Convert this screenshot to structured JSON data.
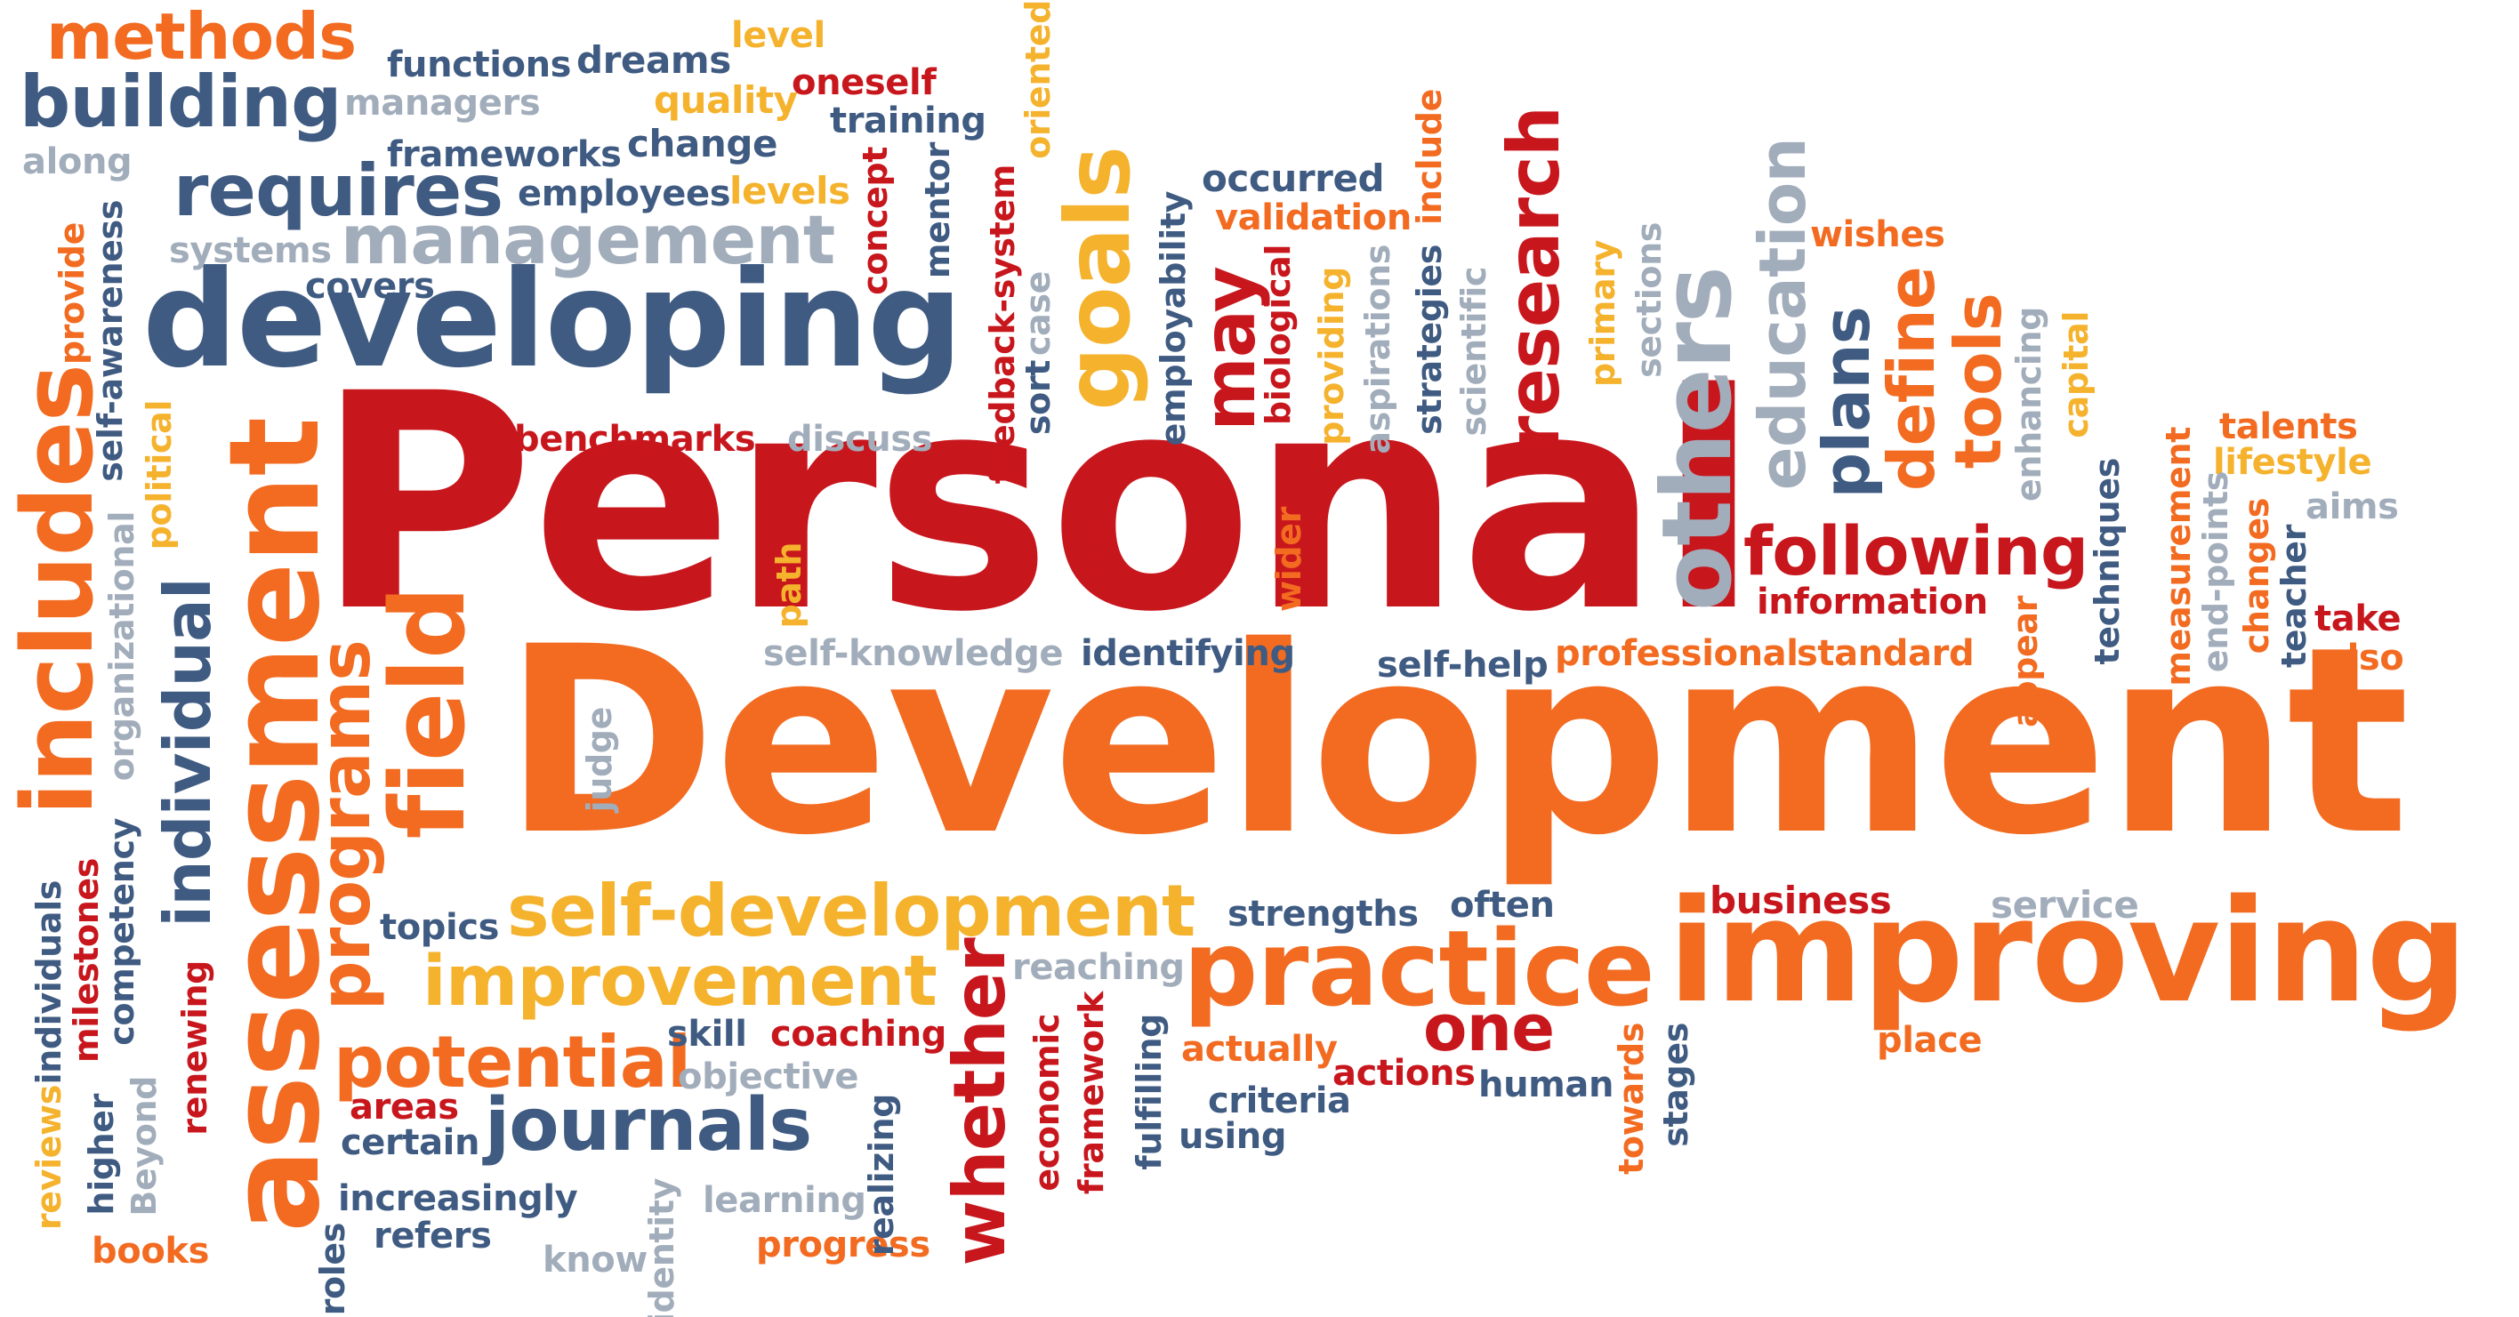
{
  "palette": {
    "orange": "#f26b21",
    "red": "#c8161d",
    "navy": "#3f5b82",
    "gray": "#a2adbb",
    "yellow": "#f5b22d",
    "background": "#ffffff"
  },
  "words": {
    "personal": "Personal",
    "development": "Development",
    "developing": "developing",
    "improving": "improving",
    "practice": "practice",
    "self_development": "self-development",
    "improvement": "improvement",
    "potential": "potential",
    "journals": "journals",
    "one": "one",
    "following": "following",
    "information": "information",
    "professional": "professional",
    "standard": "standard",
    "business": "business",
    "service": "service",
    "place": "place",
    "methods": "methods",
    "building": "building",
    "functions": "functions",
    "dreams": "dreams",
    "level": "level",
    "managers": "managers",
    "quality": "quality",
    "oneself": "oneself",
    "training": "training",
    "along": "along",
    "frameworks": "frameworks",
    "change": "change",
    "requires": "requires",
    "employees": "employees",
    "levels": "levels",
    "management": "management",
    "systems": "systems",
    "covers": "covers",
    "occurred": "occurred",
    "validation": "validation",
    "wishes": "wishes",
    "benchmarks": "benchmarks",
    "discuss": "discuss",
    "self_knowledge": "self-knowledge",
    "identifying": "identifying",
    "self_help": "self-help",
    "talents": "talents",
    "lifestyle": "lifestyle",
    "aims": "aims",
    "take": "take",
    "also": "also",
    "topics": "topics",
    "strengths": "strengths",
    "often": "often",
    "reaching": "reaching",
    "skill": "skill",
    "coaching": "coaching",
    "objective": "objective",
    "areas": "areas",
    "certain": "certain",
    "increasingly": "increasingly",
    "refers": "refers",
    "books": "books",
    "know": "know",
    "learning": "learning",
    "progress": "progress",
    "actually": "actually",
    "actions": "actions",
    "human": "human",
    "criteria": "criteria",
    "using": "using",
    "assessment": "assessment",
    "includes": "includes",
    "field": "field",
    "programs": "programs",
    "individual": "individual",
    "research": "research",
    "others": "others",
    "education": "education",
    "goals": "goals",
    "may": "may",
    "plans": "plans",
    "define": "define",
    "tools": "tools",
    "whether": "whether",
    "provide": "provide",
    "self_awareness": "self-awareness",
    "political": "political",
    "organizational": "organizational",
    "competency": "competency",
    "milestones": "milestones",
    "individuals": "individuals",
    "reviews": "reviews",
    "higher": "higher",
    "beyond": "Beyond",
    "renewing": "renewing",
    "roles": "roles",
    "identity": "identity",
    "judge": "judge",
    "path": "path",
    "life": "life",
    "realizing": "realizing",
    "economic": "economic",
    "framework": "framework",
    "fulfilling": "fulfilling",
    "concept": "concept",
    "mentor": "mentor",
    "feedback_system": "feedback-system",
    "oriented": "oriented",
    "case": "case",
    "sort": "sort",
    "employability": "employability",
    "biological": "biological",
    "providing": "providing",
    "aspirations": "aspirations",
    "include": "include",
    "strategies": "strategies",
    "scientific": "scientific",
    "wider": "wider",
    "primary": "primary",
    "sections": "sections",
    "enhancing": "enhancing",
    "capital": "capital",
    "techniques": "techniques",
    "measurement": "measurement",
    "end_points": "end-points",
    "changes": "changes",
    "teacher": "teacher",
    "appear": "appear",
    "towards": "towards",
    "stages": "stages"
  }
}
